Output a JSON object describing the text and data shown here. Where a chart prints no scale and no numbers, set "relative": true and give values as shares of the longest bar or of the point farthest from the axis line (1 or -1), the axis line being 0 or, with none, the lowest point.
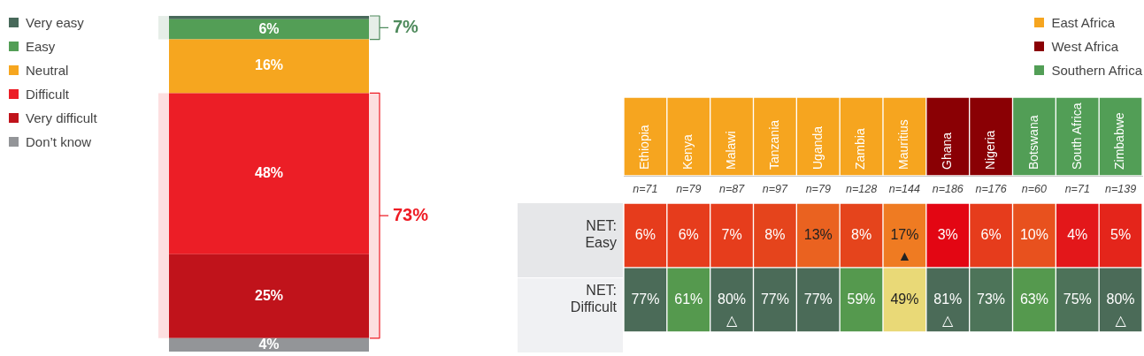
{
  "chart_data": [
    {
      "type": "bar",
      "stacked": true,
      "categories": [
        null
      ],
      "series": [
        {
          "name": "Don’t know",
          "color": "#939598",
          "values": [
            4
          ],
          "value_labels": [
            "4%"
          ]
        },
        {
          "name": "Very difficult",
          "color": "#c0131b",
          "values": [
            25
          ],
          "value_labels": [
            "25%"
          ]
        },
        {
          "name": "Difficult",
          "color": "#ec1e26",
          "values": [
            48
          ],
          "value_labels": [
            "48%"
          ]
        },
        {
          "name": "Neutral",
          "color": "#f6a61f",
          "values": [
            16
          ],
          "value_labels": [
            "16%"
          ]
        },
        {
          "name": "Easy",
          "color": "#539e56",
          "values": [
            6
          ],
          "value_labels": [
            "6%"
          ]
        },
        {
          "name": "Very easy",
          "color": "#48695a",
          "values": [
            1
          ],
          "value_labels": [
            null
          ]
        }
      ],
      "ylim": [
        0,
        100
      ],
      "tick_labels": false,
      "legend": "top left",
      "bands": [
        {
          "axis": "y",
          "from": 93,
          "to": 100,
          "label": "7%",
          "color": "#4e8a5c"
        },
        {
          "axis": "y",
          "from": 4,
          "to": 77,
          "label": "73%",
          "color": "#ee1c25"
        }
      ]
    },
    {
      "type": "bar",
      "stacked": true,
      "relative": true,
      "categories": [
        "Ethiopia",
        "Kenya",
        "Malawi",
        "Tanzania",
        "Uganda",
        "Zambia",
        "Mauritius",
        "Ghana",
        "Nigeria",
        "Botswana",
        "South Africa",
        "Zimbabwe"
      ],
      "series": [
        {
          "name": "East Africa",
          "color": "#f6a51f",
          "values": [
            1,
            1,
            1,
            1,
            1,
            1,
            1,
            null,
            null,
            null,
            null,
            null
          ]
        },
        {
          "name": "West Africa",
          "color": "#8a0004",
          "values": [
            null,
            null,
            null,
            null,
            null,
            null,
            null,
            1,
            1,
            null,
            null,
            null
          ]
        },
        {
          "name": "Southern Africa",
          "color": "#529e56",
          "values": [
            null,
            null,
            null,
            null,
            null,
            null,
            null,
            null,
            null,
            1,
            1,
            1
          ]
        }
      ],
      "legend": "top right"
    },
    {
      "type": "heatmap",
      "categories": [
        "n=71",
        "n=79",
        "n=87",
        "n=97",
        "n=79",
        "n=128",
        "n=144",
        "n=186",
        "n=176",
        "n=60",
        "n=71",
        "n=139"
      ],
      "y_categories": [
        "NET: Easy",
        "NET: Difficult"
      ],
      "cells": [
        [
          6,
          6,
          7,
          8,
          13,
          8,
          17,
          3,
          6,
          10,
          4,
          5
        ],
        [
          77,
          61,
          80,
          77,
          77,
          59,
          49,
          81,
          73,
          63,
          75,
          80
        ]
      ],
      "cell_labels": [
        [
          "6%",
          "6%",
          "7%",
          "8%",
          "13%",
          "8%",
          "17% ▲",
          "3%",
          "6%",
          "10%",
          "4%",
          "5%"
        ],
        [
          "77%",
          "61%",
          "80% △",
          "77%",
          "77%",
          "59%",
          "49%",
          "81% △",
          "73%",
          "63%",
          "75%",
          "80% △"
        ]
      ],
      "colors": [
        [
          "#e63c1c",
          "#e63c1c",
          "#e63d1c",
          "#e5441c",
          "#ea6220",
          "#e5441c",
          "#ef7b22",
          "#e30613",
          "#e63c1c",
          "#e8511e",
          "#e3171a",
          "#e4251b"
        ],
        [
          "#4b6b58",
          "#55994e",
          "#4b6b58",
          "#4b6b58",
          "#4b6b58",
          "#55994e",
          "#e9d977",
          "#4b6b58",
          "#4d7459",
          "#55994e",
          "#4d7259",
          "#4b6b58"
        ]
      ]
    }
  ]
}
